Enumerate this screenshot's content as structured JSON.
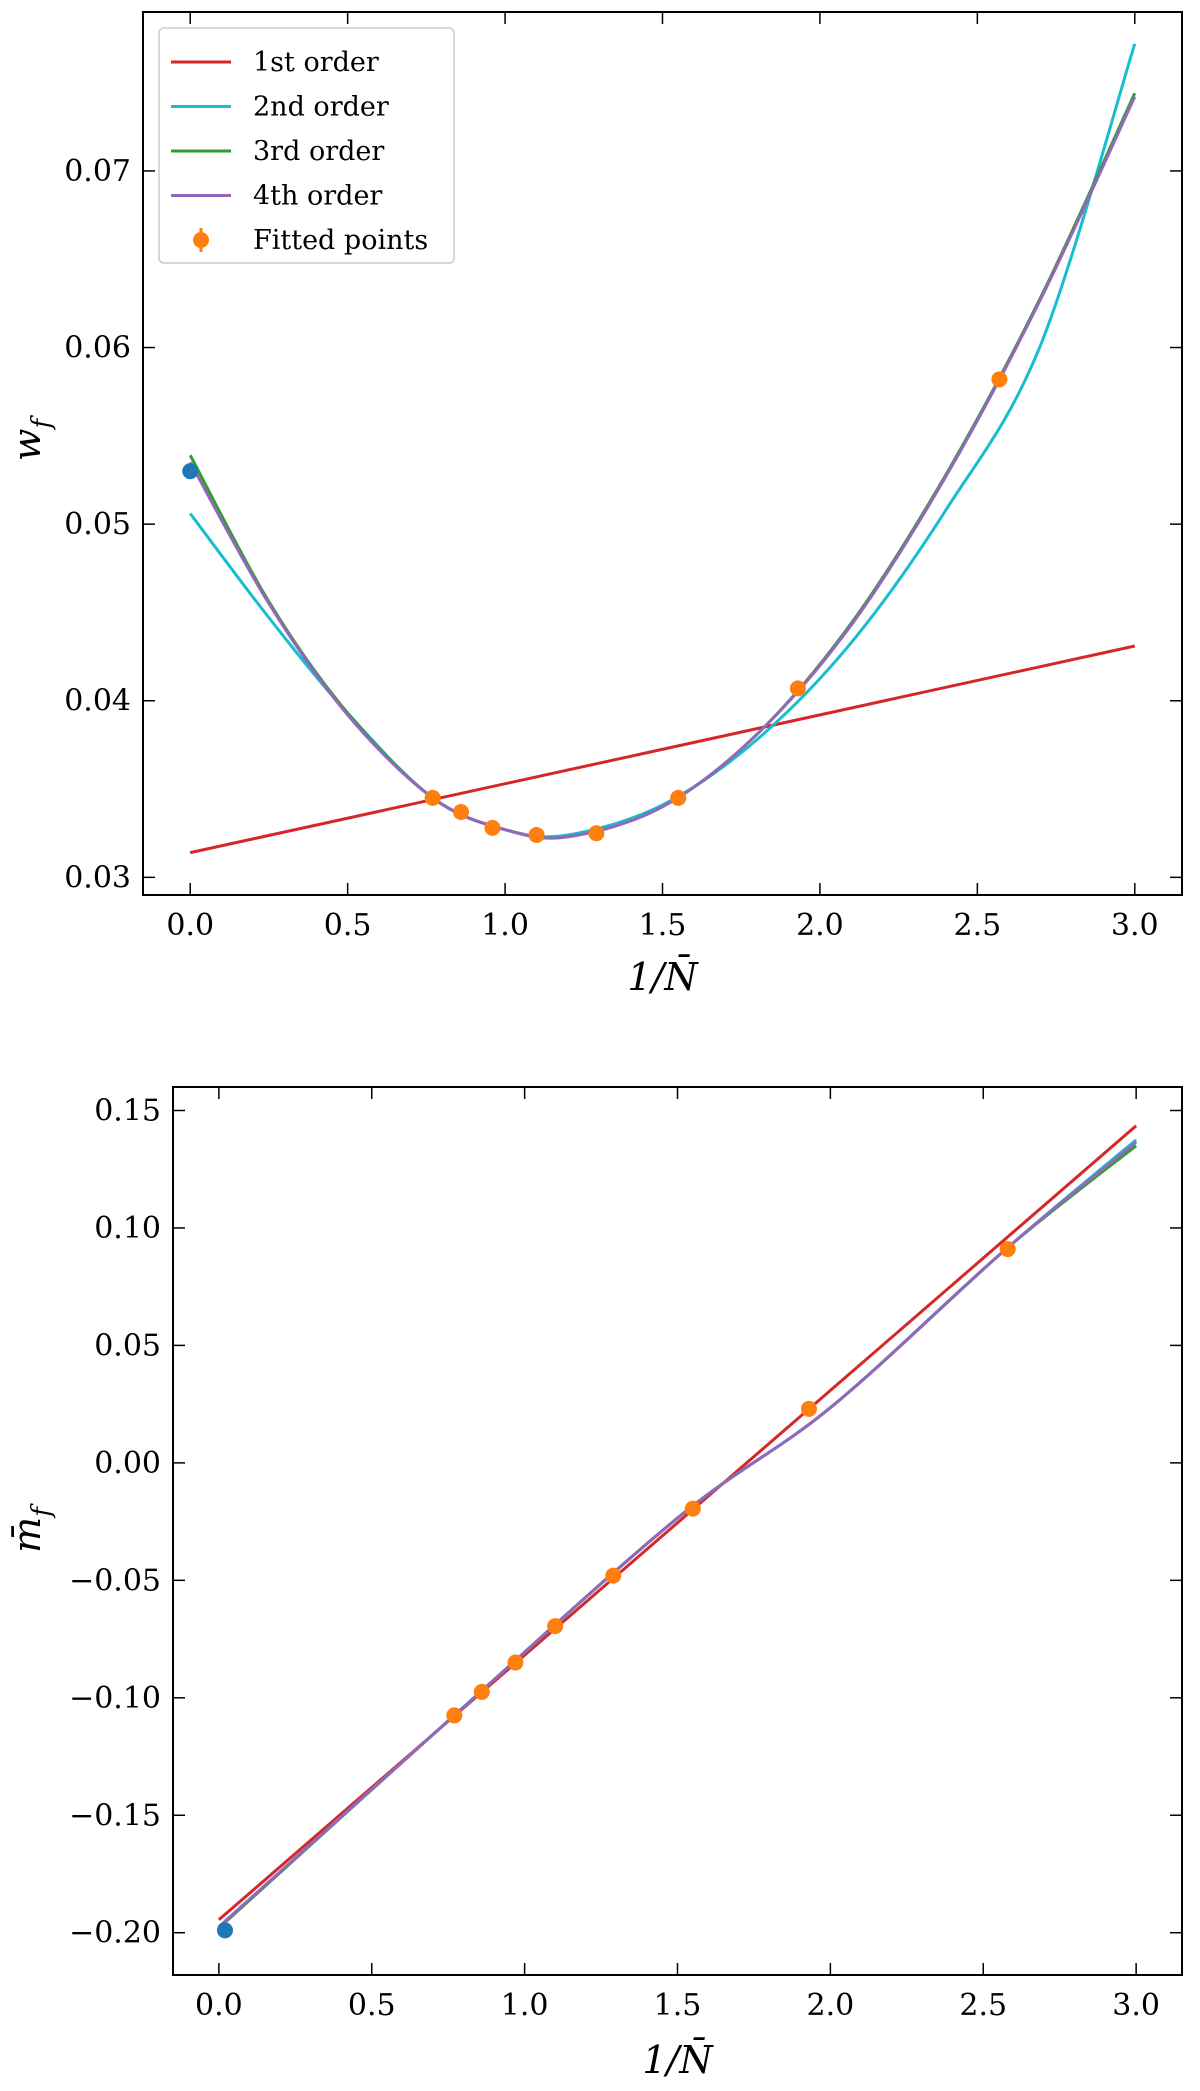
{
  "chart_data": [
    {
      "type": "line",
      "xlabel": "1/N̄",
      "ylabel": "w_f",
      "xlim": [
        -0.15,
        3.15
      ],
      "ylim": [
        0.029,
        0.079
      ],
      "x_ticks": [
        0.0,
        0.5,
        1.0,
        1.5,
        2.0,
        2.5,
        3.0
      ],
      "x_tick_labels": [
        "0.0",
        "0.5",
        "1.0",
        "1.5",
        "2.0",
        "2.5",
        "3.0"
      ],
      "y_ticks": [
        0.03,
        0.04,
        0.05,
        0.06,
        0.07
      ],
      "y_tick_labels": [
        "0.03",
        "0.04",
        "0.05",
        "0.06",
        "0.07"
      ],
      "grid": false,
      "legend": "top-left",
      "legend_entries": [
        "1st order",
        "2nd order",
        "3rd order",
        "4th order",
        "Fitted points"
      ],
      "series": [
        {
          "name": "1st order",
          "color": "#d62728",
          "x": [
            0.0,
            3.0
          ],
          "y": [
            0.0314,
            0.0431
          ]
        },
        {
          "name": "2nd order",
          "color": "#17becf",
          "x": [
            0.0,
            0.25,
            0.5,
            0.77,
            1.0,
            1.2,
            1.5,
            1.8,
            2.1,
            2.4,
            2.7,
            3.0
          ],
          "y": [
            0.0506,
            0.0447,
            0.0393,
            0.0345,
            0.0327,
            0.0324,
            0.0341,
            0.0378,
            0.0433,
            0.0508,
            0.0601,
            0.0772
          ]
        },
        {
          "name": "3rd order",
          "color": "#2ca02c",
          "x": [
            0.0,
            0.25,
            0.5,
            0.77,
            1.0,
            1.2,
            1.5,
            1.8,
            2.1,
            2.4,
            2.7,
            3.0
          ],
          "y": [
            0.0539,
            0.0456,
            0.0393,
            0.0345,
            0.0327,
            0.0323,
            0.034,
            0.0381,
            0.0444,
            0.0528,
            0.0628,
            0.0744
          ]
        },
        {
          "name": "4th order",
          "color": "#9467bd",
          "x": [
            0.0,
            0.25,
            0.5,
            0.77,
            1.0,
            1.2,
            1.5,
            1.8,
            2.1,
            2.4,
            2.7,
            3.0
          ],
          "y": [
            0.0535,
            0.0455,
            0.0392,
            0.0345,
            0.0327,
            0.0323,
            0.034,
            0.0381,
            0.0443,
            0.0527,
            0.0627,
            0.0742
          ]
        }
      ],
      "fitted_points": {
        "name": "Fitted points",
        "color": "#ff7f0e",
        "x": [
          0.77,
          0.86,
          0.96,
          1.1,
          1.29,
          1.55,
          1.93,
          2.57
        ],
        "y": [
          0.0345,
          0.0337,
          0.0328,
          0.0324,
          0.0325,
          0.0345,
          0.0407,
          0.0582
        ]
      },
      "extrapolated_point": {
        "color": "#1f77b4",
        "x": 0.0,
        "y": 0.053
      }
    },
    {
      "type": "line",
      "xlabel": "1/N̄",
      "ylabel": "m̄_f",
      "xlim": [
        -0.15,
        3.15
      ],
      "ylim": [
        -0.218,
        0.16
      ],
      "x_ticks": [
        0.0,
        0.5,
        1.0,
        1.5,
        2.0,
        2.5,
        3.0
      ],
      "x_tick_labels": [
        "0.0",
        "0.5",
        "1.0",
        "1.5",
        "2.0",
        "2.5",
        "3.0"
      ],
      "y_ticks": [
        -0.2,
        -0.15,
        -0.1,
        -0.05,
        0.0,
        0.05,
        0.1,
        0.15
      ],
      "y_tick_labels": [
        "−0.20",
        "−0.15",
        "−0.10",
        "−0.05",
        "0.00",
        "0.05",
        "0.10",
        "0.15"
      ],
      "grid": false,
      "series": [
        {
          "name": "1st order",
          "color": "#d62728",
          "x": [
            0.0,
            3.0
          ],
          "y": [
            -0.1945,
            0.1435
          ]
        },
        {
          "name": "2nd order",
          "color": "#17becf",
          "x": [
            0.0,
            0.77,
            1.5,
            2.0,
            2.57,
            3.0
          ],
          "y": [
            -0.1975,
            -0.1075,
            -0.0235,
            0.0235,
            0.0905,
            0.1375
          ]
        },
        {
          "name": "3rd order",
          "color": "#2ca02c",
          "x": [
            0.0,
            0.77,
            1.5,
            2.0,
            2.57,
            3.0
          ],
          "y": [
            -0.198,
            -0.1075,
            -0.0235,
            0.0235,
            0.0905,
            0.135
          ]
        },
        {
          "name": "4th order",
          "color": "#9467bd",
          "x": [
            0.0,
            0.77,
            1.5,
            2.0,
            2.57,
            3.0
          ],
          "y": [
            -0.1975,
            -0.1075,
            -0.0235,
            0.0235,
            0.0905,
            0.1365
          ]
        }
      ],
      "fitted_points": {
        "name": "Fitted points",
        "color": "#ff7f0e",
        "x": [
          0.77,
          0.86,
          0.97,
          1.1,
          1.29,
          1.55,
          1.93,
          2.58
        ],
        "y": [
          -0.1075,
          -0.0975,
          -0.085,
          -0.0695,
          -0.048,
          -0.0195,
          0.023,
          0.091
        ]
      },
      "extrapolated_point": {
        "color": "#1f77b4",
        "x": 0.02,
        "y": -0.199
      }
    }
  ]
}
